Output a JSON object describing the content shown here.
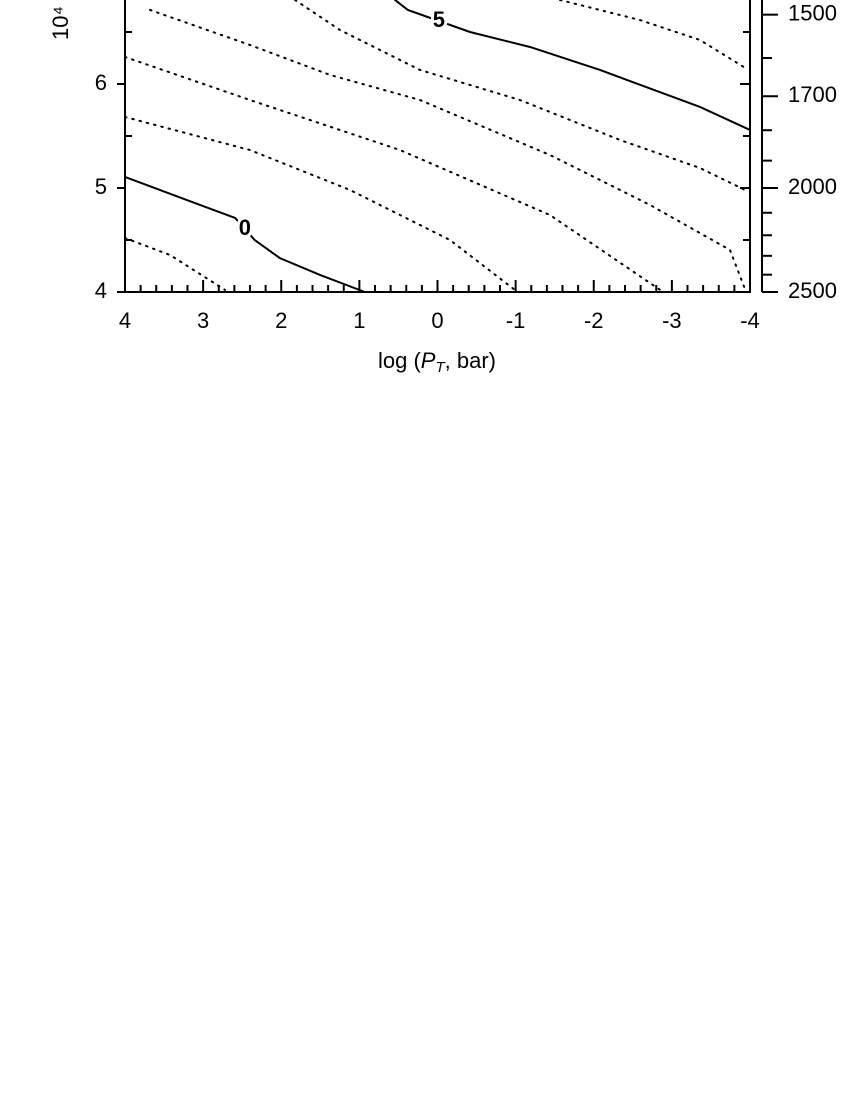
{
  "chart_data": {
    "type": "contour",
    "y_label": "10⁴",
    "x_label": {
      "prefix": "log (",
      "var": "P",
      "sub": "T",
      "suffix": ", bar)"
    },
    "xlim": [
      4,
      -4
    ],
    "xticks": [
      4,
      3,
      2,
      1,
      0,
      -1,
      -2,
      -3,
      -4
    ],
    "xminorticks": [
      3.8,
      3.6,
      3.4,
      3.2,
      2.8,
      2.6,
      2.4,
      2.2,
      1.8,
      1.6,
      1.4,
      1.2,
      0.8,
      0.6,
      0.4,
      0.2,
      -0.2,
      -0.4,
      -0.6,
      -0.8,
      -1.2,
      -1.4,
      -1.6,
      -1.8,
      -2.2,
      -2.4,
      -2.6,
      -2.8,
      -3.2,
      -3.4,
      -3.6,
      -3.8
    ],
    "ylim": [
      4,
      7
    ],
    "yticks": [
      4,
      5,
      6
    ],
    "yminorticks": [
      4.5,
      5.5,
      6.5
    ],
    "y2scale": "reciprocal",
    "y2lim": [
      2500,
      1428.57
    ],
    "y2ticks": [
      2500,
      2000,
      1700,
      1500
    ],
    "y2minorticks": [
      2400,
      2300,
      2200,
      2100,
      1900,
      1800,
      1600
    ],
    "color": "#000000",
    "series": [
      {
        "level": 0,
        "style": "solid",
        "x": [
          4,
          3.04,
          2.59,
          2.34,
          2.02,
          1.5,
          0.93
        ],
        "values": [
          5.106,
          4.837,
          4.712,
          4.5,
          4.327,
          4.163,
          4.0
        ]
      },
      {
        "level": 5,
        "style": "solid",
        "x": [
          0.544,
          0.38,
          -0.416,
          -1.184,
          -2.08,
          -3.36,
          -4.0
        ],
        "values": [
          6.808,
          6.712,
          6.5,
          6.356,
          6.135,
          5.779,
          5.558
        ]
      },
      {
        "style": "dotted",
        "x": [
          4,
          3.424,
          2.72
        ],
        "values": [
          4.519,
          4.356,
          4.02
        ]
      },
      {
        "style": "dotted",
        "x": [
          4,
          2.4,
          1.12,
          -0.16,
          -0.99
        ],
        "values": [
          5.683,
          5.365,
          4.981,
          4.5,
          4.02
        ]
      },
      {
        "style": "dotted",
        "x": [
          4,
          2.4,
          0.48,
          -1.44,
          -2.85
        ],
        "values": [
          6.26,
          5.846,
          5.365,
          4.74,
          4.02
        ]
      },
      {
        "style": "dotted",
        "x": [
          3.68,
          2.4,
          1.376,
          0.224,
          -1.44,
          -2.72,
          -3.744,
          -3.94
        ],
        "values": [
          6.712,
          6.375,
          6.087,
          5.846,
          5.317,
          4.837,
          4.404,
          4.02
        ]
      },
      {
        "style": "dotted",
        "x": [
          1.824,
          1.248,
          0.224,
          -1.056,
          -2.336,
          -3.36,
          -3.94
        ],
        "values": [
          6.808,
          6.519,
          6.135,
          5.846,
          5.462,
          5.192,
          4.98
        ]
      },
      {
        "style": "dotted",
        "x": [
          -1.568,
          -2.592,
          -3.36,
          -3.94
        ],
        "values": [
          6.808,
          6.615,
          6.423,
          6.154
        ]
      }
    ]
  }
}
